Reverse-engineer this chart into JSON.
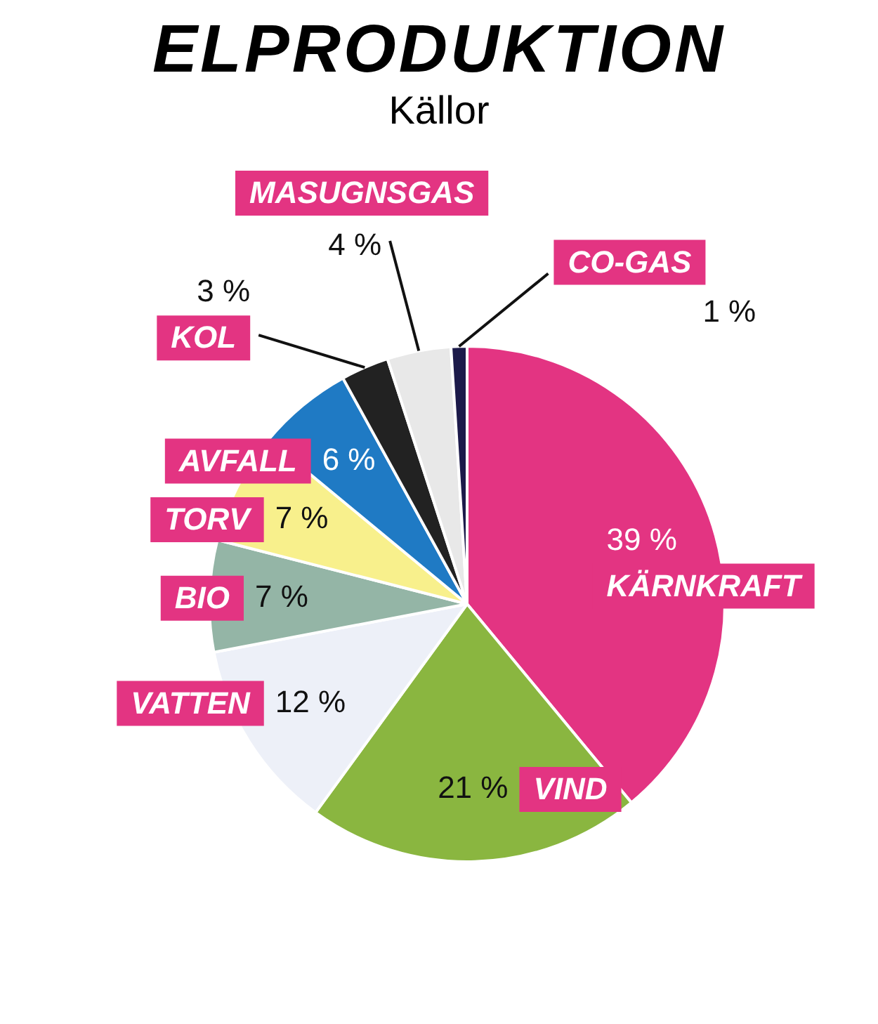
{
  "chart_data": {
    "type": "pie",
    "title": "ELPRODUKTION",
    "subtitle": "Källor",
    "categories": [
      "KÄRNKRAFT",
      "VIND",
      "VATTEN",
      "BIO",
      "TORV",
      "AVFALL",
      "KOL",
      "MASUGNSGAS",
      "CO-GAS"
    ],
    "values": [
      39,
      21,
      12,
      7,
      7,
      6,
      3,
      4,
      1
    ],
    "value_labels": [
      "39 %",
      "21 %",
      "12 %",
      "7 %",
      "7 %",
      "6 %",
      "3 %",
      "4 %",
      "1 %"
    ],
    "colors": [
      "#e33482",
      "#8ab640",
      "#edf0f8",
      "#94b5a6",
      "#f8f08c",
      "#1f7ac4",
      "#222222",
      "#e8e8e8",
      "#1c1a4a"
    ],
    "legend": false
  }
}
